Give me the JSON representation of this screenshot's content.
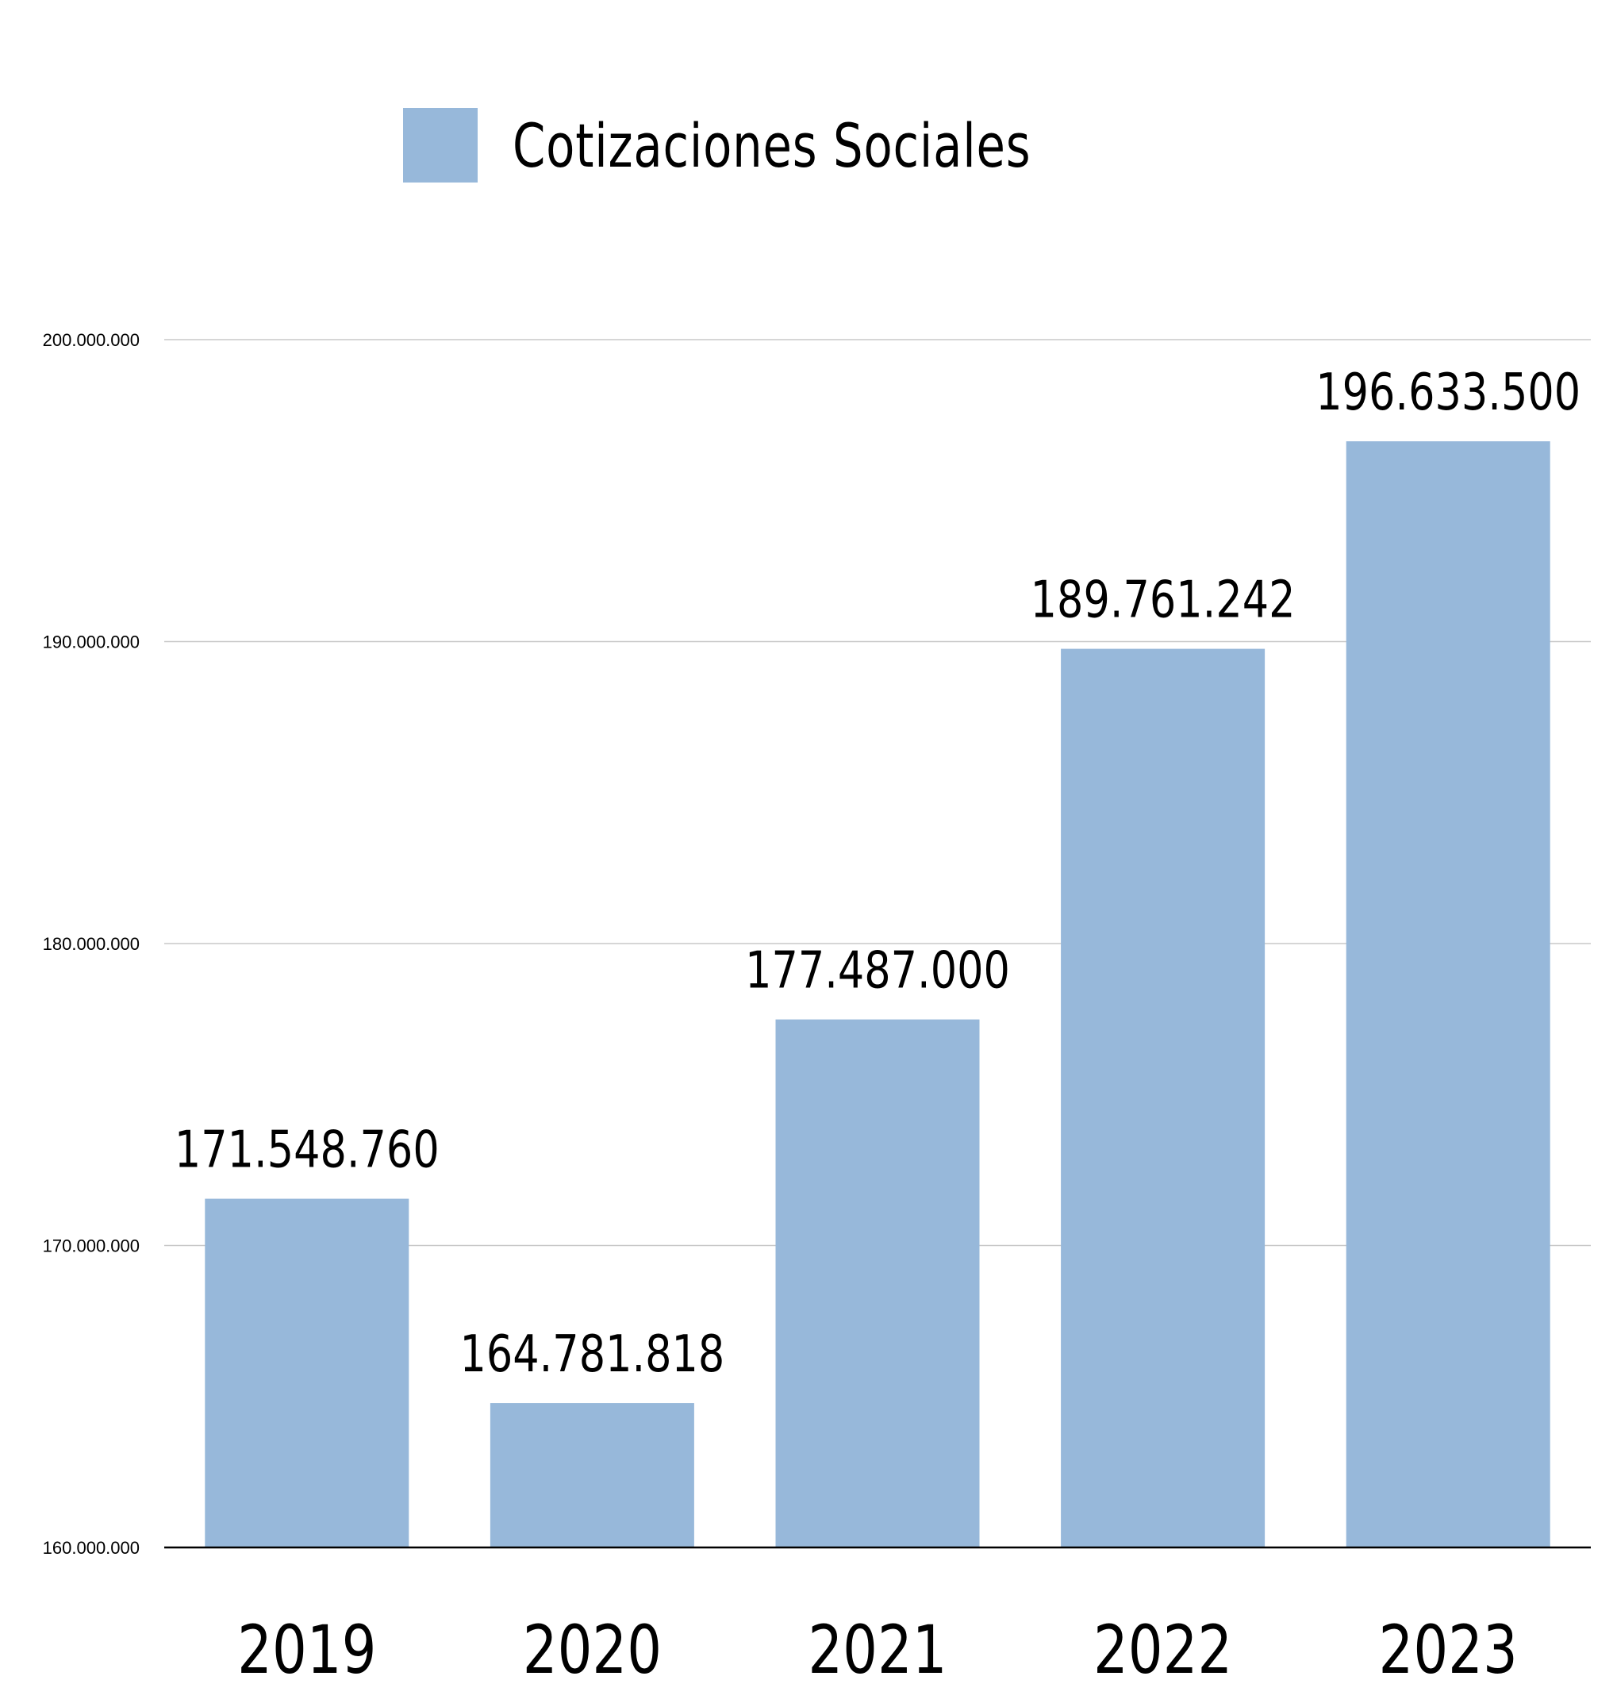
{
  "chart_data": {
    "type": "bar",
    "categories": [
      "2019",
      "2020",
      "2021",
      "2022",
      "2023"
    ],
    "series": [
      {
        "name": "Cotizaciones Sociales",
        "values": [
          171548760,
          164781818,
          177487000,
          189761242,
          196633500
        ],
        "color": "#97b8da"
      }
    ],
    "data_labels": [
      "171.548.760",
      "164.781.818",
      "177.487.000",
      "189.761.242",
      "196.633.500"
    ],
    "title": "",
    "xlabel": "",
    "ylabel": "",
    "ylim": [
      160000000,
      200000000
    ],
    "yticks": [
      160000000,
      170000000,
      180000000,
      190000000,
      200000000
    ],
    "ytick_labels": [
      "160.000.000",
      "170.000.000",
      "180.000.000",
      "190.000.000",
      "200.000.000"
    ],
    "grid": true,
    "legend_position": "top-center"
  },
  "colors": {
    "bar": "#97b8da",
    "gridline": "#c8c8c8",
    "axis": "#000000"
  }
}
